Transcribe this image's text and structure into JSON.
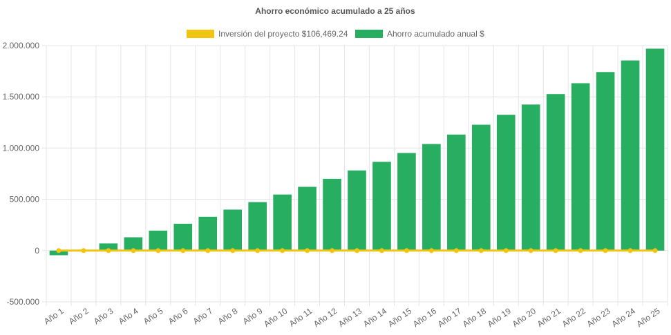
{
  "chart_data": {
    "type": "bar",
    "title": "Ahorro económico acumulado a 25 años",
    "xlabel": "",
    "ylabel": "",
    "ylim": [
      -500000,
      2000000
    ],
    "ytick_values": [
      -500000,
      0,
      500000,
      1000000,
      1500000,
      2000000
    ],
    "ytick_labels": [
      "-500.000",
      "0",
      "500.000",
      "1.000.000",
      "1.500.000",
      "2.000.000"
    ],
    "grid": true,
    "legend_placement": "top-center",
    "categories": [
      "Año 1",
      "Año 2",
      "Año 3",
      "Año 4",
      "Año 5",
      "Año 6",
      "Año 7",
      "Año 8",
      "Año 9",
      "Año 10",
      "Año 11",
      "Año 12",
      "Año 13",
      "Año 14",
      "Año 15",
      "Año 16",
      "Año 17",
      "Año 18",
      "Año 19",
      "Año 20",
      "Año 21",
      "Año 22",
      "Año 23",
      "Año 24",
      "Año 25"
    ],
    "series": [
      {
        "name": "Inversión del proyecto $106,469.24",
        "type": "line",
        "color": "#f1c40f",
        "values": [
          0,
          0,
          0,
          0,
          0,
          0,
          0,
          0,
          0,
          0,
          0,
          0,
          0,
          0,
          0,
          0,
          0,
          0,
          0,
          0,
          0,
          0,
          0,
          0,
          0
        ]
      },
      {
        "name": "Ahorro acumulado anual $",
        "type": "bar",
        "color": "#27ae60",
        "values": [
          -45000,
          0,
          70000,
          130000,
          195000,
          262000,
          330000,
          400000,
          473000,
          547000,
          622000,
          700000,
          782000,
          866000,
          952000,
          1040000,
          1132000,
          1228000,
          1325000,
          1425000,
          1527000,
          1633000,
          1742000,
          1855000,
          1970000
        ]
      }
    ]
  }
}
